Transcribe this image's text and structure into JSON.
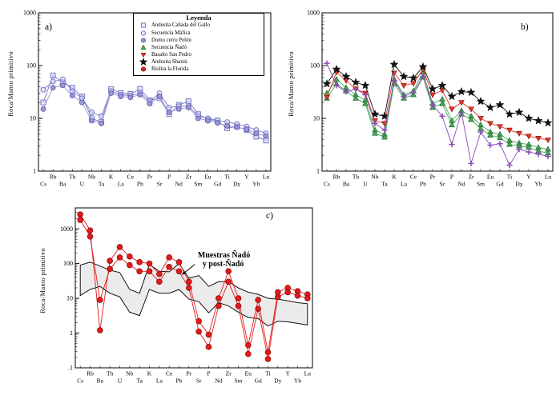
{
  "legend": {
    "title": "Leyenda",
    "entries": [
      {
        "label": "Andesita Cañada del Gallo",
        "symbol": "square-open",
        "color": "#7577c6",
        "edge": "#7577c6"
      },
      {
        "label": "Secuencia Máfica",
        "symbol": "circle-open",
        "color": "#7577c6",
        "edge": "#7577c6"
      },
      {
        "label": "Domo cerro Pelón",
        "symbol": "circle-filled",
        "color": "#9a97d8",
        "edge": "#55549e"
      },
      {
        "label": "Secuencia Ñadó",
        "symbol": "triangle-up-filled",
        "color": "#4aa85a",
        "edge": "#1e6b2e"
      },
      {
        "label": "Basalto San Pedro",
        "symbol": "triangle-down-filled",
        "color": "#e0392c",
        "edge": "#8f1710"
      },
      {
        "label": "Andesita Shaxni",
        "symbol": "star-filled",
        "color": "#111111",
        "edge": "#111111"
      },
      {
        "label": "Riolita la Florida",
        "symbol": "circle-filled",
        "color": "#e41a1a",
        "edge": "#8f0f0f"
      }
    ]
  },
  "chart_data": [
    {
      "type": "line",
      "panel_label": "a)",
      "ylabel": "Roca/Manto primitivo",
      "yscale": "log",
      "ylim": [
        1,
        1000
      ],
      "ytick_values": [
        1,
        10,
        100,
        1000
      ],
      "ytick_labels": [
        "1",
        "10",
        "100",
        "1000"
      ],
      "grid": false,
      "legend_position": "inside-top-right",
      "categories": [
        "Cs",
        "Rb",
        "Ba",
        "Th",
        "U",
        "Nb",
        "Ta",
        "K",
        "La",
        "Ce",
        "Pb",
        "Pr",
        "Sr",
        "P",
        "Nd",
        "Zr",
        "Sm",
        "Eu",
        "Gd",
        "Ti",
        "Dy",
        "Y",
        "Yb",
        "Lu"
      ],
      "series": [
        {
          "name": "Andesita Cañada del Gallo",
          "symbol": "square-open",
          "color": "#7577c6",
          "edge": "#7577c6",
          "size": 3,
          "values": [
            20,
            65,
            48,
            38,
            26,
            10,
            8.5,
            36,
            30,
            29,
            36,
            22,
            24,
            12,
            18,
            21,
            12,
            9.5,
            9,
            6.5,
            7,
            6,
            4.5,
            3.8
          ]
        },
        {
          "name": "Secuencia Máfica",
          "symbol": "circle-open",
          "color": "#7577c6",
          "edge": "#7577c6",
          "size": 3,
          "values": [
            35,
            50,
            55,
            33,
            24,
            13,
            11,
            33,
            28,
            27,
            30,
            21,
            30,
            16,
            17,
            17,
            11,
            10,
            9.2,
            8.5,
            7.8,
            7,
            6,
            5.2
          ]
        },
        {
          "name": "Domo cerro Pelón",
          "symbol": "circle-filled",
          "color": "#9a97d8",
          "edge": "#55549e",
          "size": 3,
          "values": [
            15,
            38,
            42,
            27,
            20,
            9,
            8,
            30,
            26,
            25,
            28,
            19,
            26,
            13,
            15,
            16,
            10,
            9,
            8.2,
            7.2,
            6.8,
            6.2,
            5.2,
            4.6
          ]
        }
      ]
    },
    {
      "type": "line",
      "panel_label": "b)",
      "ylabel": "Roca/Manto primitivo",
      "yscale": "log",
      "ylim": [
        1,
        1000
      ],
      "ytick_values": [
        1,
        10,
        100,
        1000
      ],
      "ytick_labels": [
        "1",
        "10",
        "100",
        "1000"
      ],
      "grid": false,
      "categories": [
        "Cs",
        "Rb",
        "Ba",
        "Th",
        "U",
        "Nb",
        "Ta",
        "K",
        "La",
        "Ce",
        "Pb",
        "Pr",
        "Sr",
        "P",
        "Nd",
        "Zr",
        "Sm",
        "Eu",
        "Gd",
        "Ti",
        "Dy",
        "Y",
        "Yb",
        "Lu"
      ],
      "series": [
        {
          "name": "Secuencia Ñadó",
          "symbol": "triangle-up-filled",
          "color": "#4aa85a",
          "edge": "#1e6b2e",
          "size": 3,
          "values": [
            30,
            55,
            38,
            28,
            22,
            6,
            5,
            55,
            28,
            33,
            75,
            19,
            23,
            9,
            14,
            11,
            7.5,
            5.5,
            5,
            3.8,
            3.4,
            3.2,
            2.8,
            2.6
          ]
        },
        {
          "name": "Secuencia Ñadó (2)",
          "symbol": "triangle-up-filled",
          "color": "#4aa85a",
          "edge": "#1e6b2e",
          "size": 3,
          "values": [
            24,
            45,
            33,
            24,
            19,
            5.2,
            4.4,
            45,
            24,
            28,
            60,
            16,
            19,
            7.5,
            12,
            9.5,
            6.4,
            4.8,
            4.3,
            3.2,
            3,
            2.8,
            2.4,
            2.2
          ]
        },
        {
          "name": "Basalto San Pedro",
          "symbol": "triangle-down-filled",
          "color": "#e0392c",
          "edge": "#8f1710",
          "size": 3,
          "values": [
            25,
            75,
            52,
            36,
            30,
            9,
            8,
            72,
            42,
            46,
            85,
            28,
            34,
            15,
            20,
            15,
            10,
            8,
            7,
            6,
            5.2,
            4.6,
            4.2,
            3.9
          ]
        },
        {
          "name": "Andesita Shaxni",
          "symbol": "star-filled",
          "color": "#111111",
          "edge": "#111111",
          "size": 2.7,
          "values": [
            45,
            85,
            62,
            48,
            42,
            12,
            11,
            105,
            62,
            58,
            95,
            36,
            42,
            26,
            32,
            31,
            21,
            16,
            18,
            12,
            13,
            10,
            9,
            8.2
          ]
        },
        {
          "name": "cruz-morada",
          "symbol": "plus",
          "color": "#8a4bb8",
          "edge": "#8a4bb8",
          "size": 3,
          "values": [
            110,
            42,
            32,
            36,
            28,
            8,
            6,
            52,
            26,
            31,
            62,
            18,
            11,
            3.2,
            13,
            1.4,
            5.5,
            3.1,
            3.3,
            1.3,
            2.6,
            2.3,
            2.1,
            1.9
          ]
        }
      ]
    },
    {
      "type": "line",
      "panel_label": "c)",
      "ylabel": "Roca/Manto primitivo",
      "yscale": "log",
      "ylim": [
        0.1,
        4000
      ],
      "ytick_values": [
        0.1,
        1,
        10,
        100,
        1000
      ],
      "ytick_labels": [
        ".1",
        "1",
        "10",
        "100",
        "1000"
      ],
      "grid": false,
      "categories": [
        "Cs",
        "Rb",
        "Ba",
        "Th",
        "U",
        "Nb",
        "Ta",
        "K",
        "La",
        "Ce",
        "Pb",
        "Pr",
        "Sr",
        "P",
        "Nd",
        "Zr",
        "Sm",
        "Eu",
        "Gd",
        "Ti",
        "Dy",
        "Y",
        "Yb",
        "Lu"
      ],
      "band": {
        "name": "Muestras Ñadó y post-Ñadó",
        "upper": [
          90,
          110,
          85,
          65,
          55,
          18,
          14,
          95,
          60,
          58,
          100,
          38,
          45,
          22,
          30,
          30,
          20,
          15,
          13,
          10,
          9.5,
          8.5,
          7.5,
          7
        ],
        "lower": [
          12,
          18,
          22,
          14,
          11,
          4,
          3.2,
          18,
          14,
          14,
          18,
          9.5,
          8,
          3.8,
          7.5,
          6,
          4,
          2.8,
          2.6,
          1.6,
          2.2,
          2.1,
          1.9,
          1.7
        ]
      },
      "annotation": {
        "lines": [
          "Muestras Ñadó",
          "y post-Ñadó"
        ],
        "text_at": {
          "index": 11.9,
          "value": 150
        },
        "arrow_from": {
          "index": 11.6,
          "value": 95
        },
        "arrow_to": {
          "index": 10.3,
          "value": 48
        }
      },
      "series": [
        {
          "name": "Riolita la Florida (muestra 1)",
          "symbol": "circle-filled",
          "color": "#e41a1a",
          "edge": "#8f0f0f",
          "size": 3.4,
          "values": [
            2600,
            900,
            1.2,
            120,
            300,
            160,
            110,
            100,
            50,
            150,
            110,
            30,
            2.2,
            0.9,
            10,
            60,
            10,
            0.45,
            9,
            0.28,
            15,
            20,
            16,
            13
          ]
        },
        {
          "name": "Riolita la Florida (muestra 2)",
          "symbol": "circle-filled",
          "color": "#e41a1a",
          "edge": "#8f0f0f",
          "size": 3.4,
          "values": [
            1800,
            600,
            9,
            70,
            150,
            90,
            60,
            60,
            30,
            80,
            60,
            20,
            1.1,
            0.4,
            6,
            30,
            6,
            0.25,
            5,
            0.18,
            11,
            15,
            12,
            10
          ]
        }
      ]
    }
  ]
}
